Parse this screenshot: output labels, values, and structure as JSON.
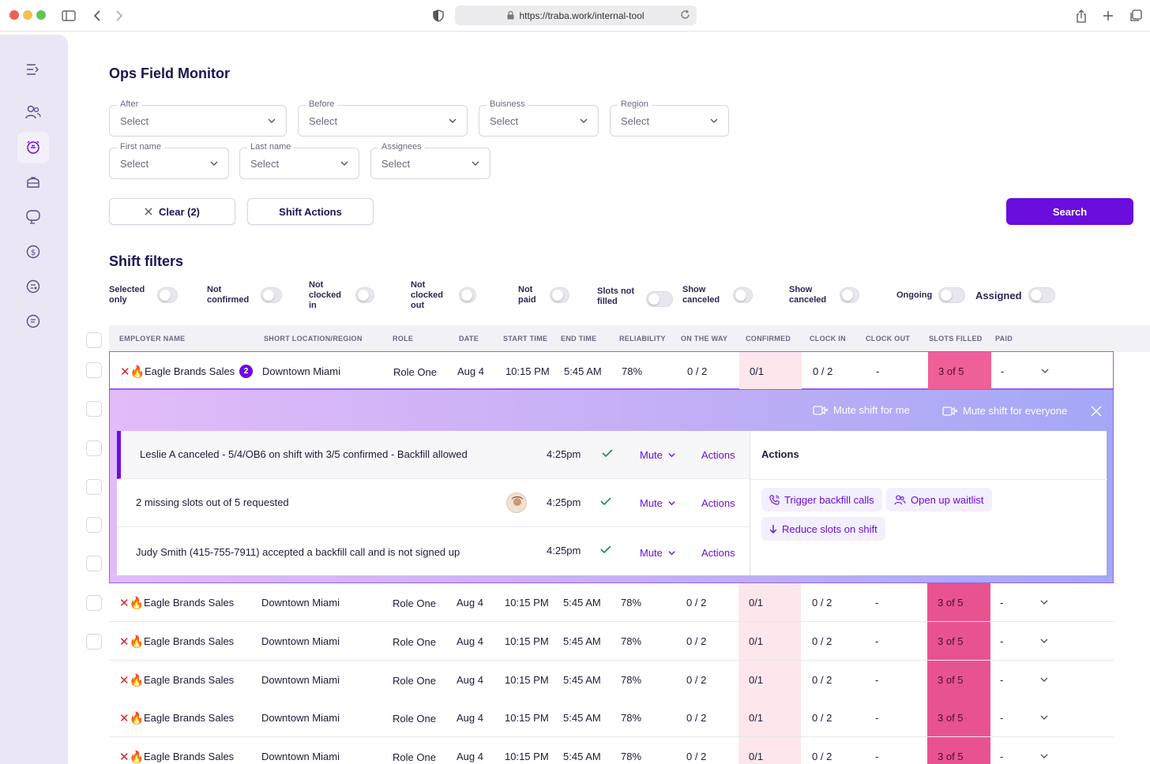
{
  "browser": {
    "url": "https://traba.work/internal-tool"
  },
  "page": {
    "title": "Ops Field Monitor"
  },
  "filters": {
    "after": {
      "label": "After",
      "value": "Select"
    },
    "before": {
      "label": "Before",
      "value": "Select"
    },
    "business": {
      "label": "Buisness",
      "value": "Select"
    },
    "region": {
      "label": "Region",
      "value": "Select"
    },
    "first_name": {
      "label": "First name",
      "value": "Select"
    },
    "last_name": {
      "label": "Last name",
      "value": "Select"
    },
    "assignees": {
      "label": "Assignees",
      "value": "Select"
    }
  },
  "buttons": {
    "clear": "Clear (2)",
    "shift_actions": "Shift Actions",
    "search": "Search"
  },
  "shift_filters": {
    "title": "Shift filters",
    "toggles": [
      {
        "label": "Selected only"
      },
      {
        "label": "Not confirmed"
      },
      {
        "label": "Not clocked in"
      },
      {
        "label": "Not clocked out"
      },
      {
        "label": "Not paid"
      },
      {
        "label": "Slots not filled"
      },
      {
        "label": "Show canceled"
      },
      {
        "label": "Show canceled"
      },
      {
        "label": "Ongoing"
      },
      {
        "label": "Assigned"
      }
    ]
  },
  "table": {
    "columns": [
      "EMPLOYER NAME",
      "SHORT LOCATION/REGION",
      "ROLE",
      "DATE",
      "START TIME",
      "END TIME",
      "RELIABILITY",
      "ON THE WAY",
      "CONFIRMED",
      "CLOCK IN",
      "CLOCK OUT",
      "SLOTS FILLED",
      "PAID"
    ],
    "flag": "✕🔥",
    "active_row": {
      "employer": "Eagle Brands Sales",
      "badge": "2",
      "location": "Downtown Miami",
      "role": "Role One",
      "date": "Aug 4",
      "start": "10:15 PM",
      "end": "5:45 AM",
      "reliability": "78%",
      "on_the_way": "0 / 2",
      "confirmed": "0/1",
      "clock_in": "0 / 2",
      "clock_out": "-",
      "slots_filled": "3 of 5",
      "paid": "-"
    },
    "rows": [
      {
        "employer": "Eagle Brands Sales",
        "location": "Downtown Miami",
        "role": "Role One",
        "date": "Aug 4",
        "start": "10:15 PM",
        "end": "5:45 AM",
        "reliability": "78%",
        "on_the_way": "0 / 2",
        "confirmed": "0/1",
        "clock_in": "0 / 2",
        "clock_out": "-",
        "slots_filled": "3 of 5",
        "paid": "-"
      },
      {
        "employer": "Eagle Brands Sales",
        "location": "Downtown Miami",
        "role": "Role One",
        "date": "Aug 4",
        "start": "10:15 PM",
        "end": "5:45 AM",
        "reliability": "78%",
        "on_the_way": "0 / 2",
        "confirmed": "0/1",
        "clock_in": "0 / 2",
        "clock_out": "-",
        "slots_filled": "3 of 5",
        "paid": "-"
      },
      {
        "employer": "Eagle Brands Sales",
        "location": "Downtown Miami",
        "role": "Role One",
        "date": "Aug 4",
        "start": "10:15 PM",
        "end": "5:45 AM",
        "reliability": "78%",
        "on_the_way": "0 / 2",
        "confirmed": "0/1",
        "clock_in": "0 / 2",
        "clock_out": "-",
        "slots_filled": "3 of 5",
        "paid": "-"
      },
      {
        "employer": "Eagle Brands Sales",
        "location": "Downtown Miami",
        "role": "Role One",
        "date": "Aug 4",
        "start": "10:15 PM",
        "end": "5:45 AM",
        "reliability": "78%",
        "on_the_way": "0 / 2",
        "confirmed": "0/1",
        "clock_in": "0 / 2",
        "clock_out": "-",
        "slots_filled": "3 of 5",
        "paid": "-"
      },
      {
        "employer": "Eagle Brands Sales",
        "location": "Downtown Miami",
        "role": "Role One",
        "date": "Aug 4",
        "start": "10:15 PM",
        "end": "5:45 AM",
        "reliability": "78%",
        "on_the_way": "0 / 2",
        "confirmed": "0/1",
        "clock_in": "0 / 2",
        "clock_out": "-",
        "slots_filled": "3 of 5",
        "paid": "-"
      }
    ]
  },
  "panel": {
    "mute_me": "Mute shift for me",
    "mute_everyone": "Mute shift for everyone",
    "alerts": [
      {
        "text": "Leslie A canceled -  5/4/OB6 on shift with 3/5 confirmed - Backfill allowed",
        "time": "4:25pm",
        "mute": "Mute",
        "actions": "Actions"
      },
      {
        "text": "2 missing slots out of 5 requested",
        "time": "4:25pm",
        "mute": "Mute",
        "actions": "Actions"
      },
      {
        "text": "Judy Smith (415-755-7911) accepted a backfill call and is not signed up",
        "time": "4:25pm",
        "mute": "Mute",
        "actions": "Actions"
      }
    ],
    "actions_title": "Actions",
    "action_chips": {
      "trigger_backfill": "Trigger backfill calls",
      "open_waitlist": "Open up waitlist",
      "reduce_slots": "Reduce slots on shift"
    }
  },
  "colors": {
    "accent": "#6a0ddd",
    "confirmed_bg": "#fde7ec",
    "slots_bg": "#e8538f"
  }
}
